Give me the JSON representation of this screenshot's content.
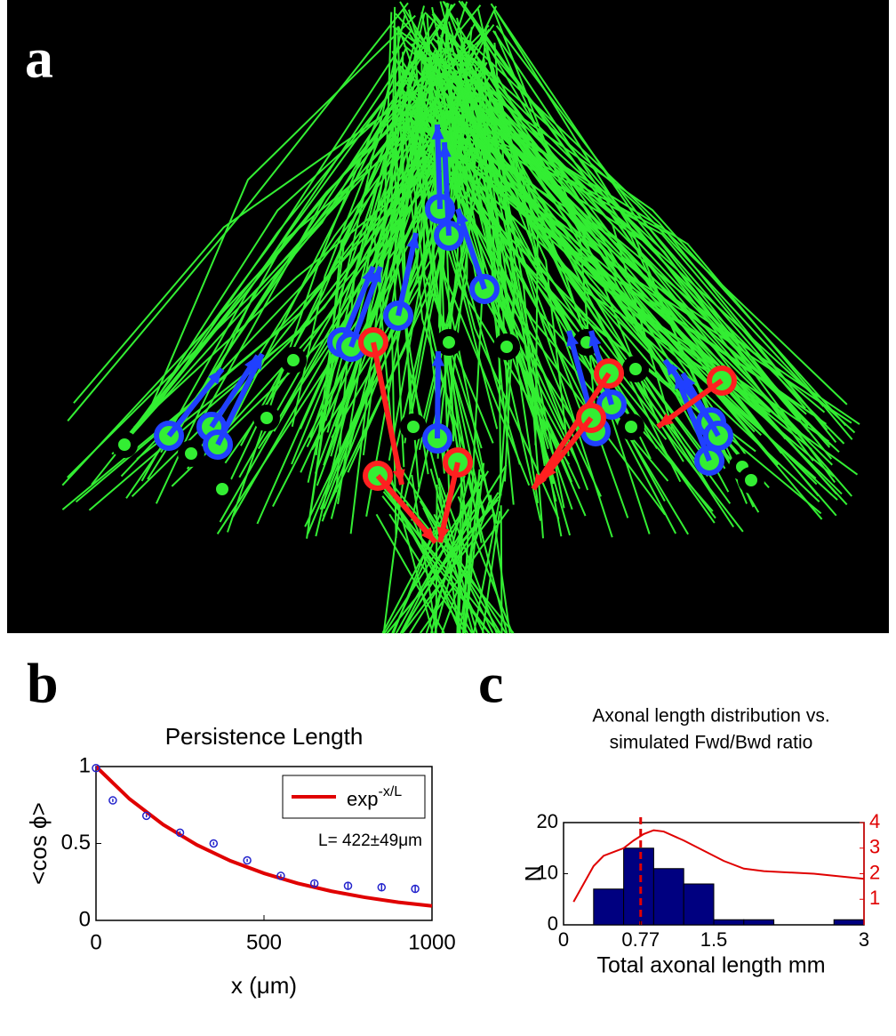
{
  "panel_labels": [
    "a",
    "b",
    "c"
  ],
  "chart_data": [
    {
      "type": "scatter",
      "title": "Persistence Length",
      "x_label": "x (μm)",
      "y_label": "<cos ϕ>",
      "xlim": [
        0,
        1000
      ],
      "xticks": [
        0,
        500,
        1000
      ],
      "ylim": [
        0,
        1
      ],
      "yticks": [
        0,
        0.5,
        1
      ],
      "x": [
        0,
        50,
        150,
        250,
        350,
        450,
        550,
        650,
        750,
        850,
        950
      ],
      "values": [
        0.99,
        0.78,
        0.68,
        0.57,
        0.5,
        0.39,
        0.29,
        0.24,
        0.225,
        0.215,
        0.205
      ],
      "errors": [
        0.01,
        0.01,
        0.01,
        0.01,
        0.01,
        0.01,
        0.01,
        0.015,
        0.02,
        0.025,
        0.025
      ],
      "color": "#2222cc",
      "series": [
        {
          "name": "exp",
          "name_superscript": "-x/L",
          "color": "#e00000",
          "x": [
            0,
            100,
            200,
            300,
            400,
            500,
            600,
            700,
            800,
            900,
            1000
          ],
          "values": [
            1,
            0.789,
            0.622,
            0.491,
            0.387,
            0.306,
            0.241,
            0.19,
            0.15,
            0.118,
            0.094
          ]
        }
      ],
      "annotation": "L= 422±49μm",
      "legend": "upper right"
    },
    {
      "type": "histogram",
      "title": [
        "Axonal length distribution vs.",
        "simulated Fwd/Bwd ratio"
      ],
      "x_label": "Total axonal length mm",
      "y_label": "N",
      "xlim": [
        0,
        3
      ],
      "xticks": [
        0,
        0.77,
        1.5,
        3
      ],
      "ylim": [
        0,
        20
      ],
      "yticks": [
        0,
        10,
        20
      ],
      "y2lim": [
        0,
        4
      ],
      "y2ticks": [
        1,
        2,
        3,
        4
      ],
      "bins": [
        0.3,
        0.6,
        0.9,
        1.2,
        1.5,
        1.8,
        2.1,
        2.4,
        2.7,
        3.0
      ],
      "values": [
        7,
        15,
        11,
        8,
        1,
        1,
        0,
        0,
        1
      ],
      "color": "#000080",
      "vline": 0.77,
      "vline_color": "#e00000",
      "series": [
        {
          "color": "#e00000",
          "axis": "y2",
          "x": [
            0.1,
            0.2,
            0.3,
            0.4,
            0.5,
            0.6,
            0.7,
            0.8,
            0.9,
            1.0,
            1.2,
            1.4,
            1.6,
            1.8,
            2.0,
            2.5,
            3.0
          ],
          "values": [
            0.9,
            1.6,
            2.3,
            2.7,
            2.85,
            3.0,
            3.3,
            3.55,
            3.7,
            3.65,
            3.3,
            2.9,
            2.5,
            2.2,
            2.1,
            2.0,
            1.8
          ]
        }
      ]
    }
  ]
}
